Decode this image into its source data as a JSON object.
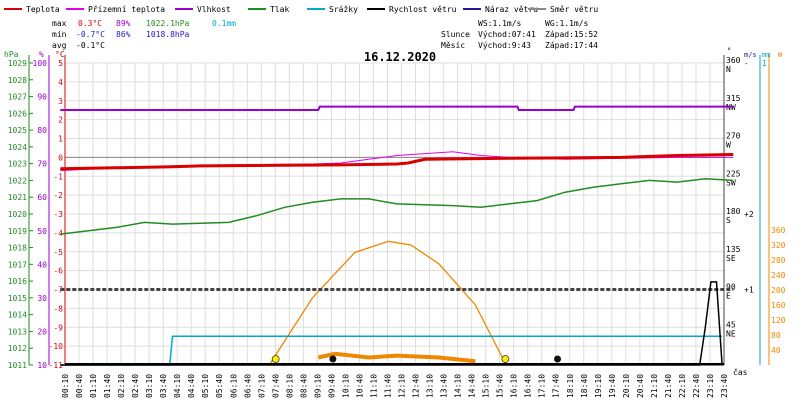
{
  "chart_data": {
    "type": "line",
    "title": "16.12.2020",
    "legend": [
      {
        "name": "Teplota",
        "color": "#d90000"
      },
      {
        "name": "Přízemní teplota",
        "color": "#e600e6"
      },
      {
        "name": "Vlhkost",
        "color": "#9900cc"
      },
      {
        "name": "Tlak",
        "color": "#228b22"
      },
      {
        "name": "Srážky",
        "color": "#00aacc"
      },
      {
        "name": "Rychlost větru",
        "color": "#000000"
      },
      {
        "name": "Náraz větru",
        "color": "#1a1a99"
      },
      {
        "name": "Směr větru",
        "color": "#888888"
      }
    ],
    "stats": {
      "max": {
        "label": "max",
        "temp": "0.3°C",
        "hum": "89%",
        "press": "1022.1hPa",
        "rain": "0.1mm"
      },
      "min": {
        "label": "min",
        "temp": "-0.7°C",
        "hum": "86%",
        "press": "1018.8hPa"
      },
      "avg": {
        "label": "avg",
        "temp": "-0.1°C"
      }
    },
    "astro": {
      "ws": "WS:1.1m/s",
      "wg": "WG:1.1m/s",
      "sun_label": "Slunce",
      "sunrise": "Východ:07:41",
      "sunset": "Západ:15:52",
      "moon_label": "Měsíc",
      "moonrise": "Východ:9:43",
      "moonset": "Západ:17:44"
    },
    "x_axis": {
      "label": "čas",
      "ticks": [
        "00:10",
        "00:40",
        "01:10",
        "01:40",
        "02:10",
        "02:40",
        "03:10",
        "03:40",
        "04:10",
        "04:40",
        "05:10",
        "05:40",
        "06:10",
        "06:40",
        "07:10",
        "07:40",
        "08:10",
        "08:40",
        "09:10",
        "09:40",
        "10:10",
        "10:40",
        "11:10",
        "11:40",
        "12:10",
        "12:40",
        "13:10",
        "13:40",
        "14:10",
        "14:40",
        "15:10",
        "15:40",
        "16:10",
        "16:40",
        "17:10",
        "17:40",
        "18:10",
        "18:40",
        "19:10",
        "19:40",
        "20:10",
        "20:40",
        "21:10",
        "21:40",
        "22:10",
        "22:40",
        "23:10",
        "23:40"
      ]
    },
    "axes": {
      "press": {
        "unit": "hPa",
        "color": "#228b22",
        "ticks": [
          "1029",
          "1028",
          "1027",
          "1026",
          "1025",
          "1024",
          "1023",
          "1022",
          "1021",
          "1020",
          "1019",
          "1018",
          "1017",
          "1016",
          "1015",
          "1014",
          "1013",
          "1012",
          "1011"
        ]
      },
      "hum": {
        "unit": "%",
        "color": "#9900cc",
        "ticks": [
          "100",
          "90",
          "80",
          "70",
          "60",
          "50",
          "40",
          "30",
          "20",
          "10"
        ]
      },
      "temp": {
        "unit": "°C",
        "color": "#d90000",
        "ticks": [
          "5",
          "4",
          "3",
          "2",
          "1",
          "0",
          "-1",
          "-2",
          "-3",
          "-4",
          "-5",
          "-6",
          "-7",
          "-8",
          "-9",
          "-10",
          "-11"
        ]
      },
      "dir": {
        "unit": "°",
        "ticks": [
          "360",
          "315",
          "270",
          "225",
          "180",
          "135",
          "90",
          "45"
        ],
        "names": [
          "N",
          "NW",
          "W",
          "SW",
          "S",
          "SE",
          "E",
          "NE"
        ]
      },
      "wind": {
        "unit": "m/s",
        "ticks": [
          "2",
          "1"
        ]
      },
      "rain": {
        "unit": "mm",
        "ticks": [
          "1"
        ]
      },
      "solar": {
        "unit": "W",
        "color": "#ee8800",
        "ticks": [
          "360",
          "320",
          "280",
          "240",
          "200",
          "160",
          "120",
          "80",
          "40"
        ]
      }
    },
    "series": {
      "temperature": [
        [
          0,
          -0.6
        ],
        [
          2,
          -0.55
        ],
        [
          4,
          -0.5
        ],
        [
          5,
          -0.45
        ],
        [
          8,
          -0.42
        ],
        [
          10,
          -0.4
        ],
        [
          12,
          -0.35
        ],
        [
          12.4,
          -0.3
        ],
        [
          13,
          -0.1
        ],
        [
          16,
          -0.05
        ],
        [
          18,
          -0.03
        ],
        [
          20,
          0.0
        ],
        [
          22,
          0.1
        ],
        [
          24,
          0.15
        ]
      ],
      "ground_temperature": [
        [
          0,
          -0.7
        ],
        [
          2,
          -0.55
        ],
        [
          4,
          -0.45
        ],
        [
          6,
          -0.4
        ],
        [
          9,
          -0.35
        ],
        [
          10,
          -0.3
        ],
        [
          11,
          -0.1
        ],
        [
          12,
          0.1
        ],
        [
          13,
          0.2
        ],
        [
          14,
          0.3
        ],
        [
          15,
          0.1
        ],
        [
          16,
          0.0
        ],
        [
          18,
          -0.1
        ],
        [
          20,
          -0.05
        ],
        [
          22,
          0.0
        ],
        [
          24,
          0.0
        ]
      ],
      "humidity": [
        [
          0,
          86
        ],
        [
          9.2,
          86
        ],
        [
          9.25,
          87
        ],
        [
          16.3,
          87
        ],
        [
          16.35,
          86
        ],
        [
          18.3,
          86
        ],
        [
          18.35,
          87
        ],
        [
          24,
          87
        ]
      ],
      "pressure": [
        [
          0,
          1018.8
        ],
        [
          1,
          1019.0
        ],
        [
          2,
          1019.2
        ],
        [
          3,
          1019.5
        ],
        [
          4,
          1019.4
        ],
        [
          6,
          1019.5
        ],
        [
          7,
          1019.9
        ],
        [
          8,
          1020.4
        ],
        [
          9,
          1020.7
        ],
        [
          10,
          1020.9
        ],
        [
          11,
          1020.9
        ],
        [
          12,
          1020.6
        ],
        [
          14,
          1020.5
        ],
        [
          15,
          1020.4
        ],
        [
          16,
          1020.6
        ],
        [
          17,
          1020.8
        ],
        [
          18,
          1021.3
        ],
        [
          19,
          1021.6
        ],
        [
          20,
          1021.8
        ],
        [
          21,
          1022.0
        ],
        [
          22,
          1021.9
        ],
        [
          23,
          1022.1
        ],
        [
          24,
          1022.0
        ]
      ],
      "rain": [
        [
          0,
          0
        ],
        [
          3.9,
          0
        ],
        [
          4.0,
          0.1
        ],
        [
          23.6,
          0.1
        ]
      ],
      "wind_speed": [
        [
          0,
          0
        ],
        [
          22.8,
          0
        ],
        [
          23.0,
          0.5
        ],
        [
          23.2,
          1.1
        ],
        [
          23.4,
          1.1
        ],
        [
          23.6,
          0
        ]
      ],
      "wind_direction_dashed": [
        [
          0,
          90
        ],
        [
          24,
          90
        ]
      ],
      "solar": [
        [
          7.45,
          0
        ],
        [
          9,
          180
        ],
        [
          10.5,
          300
        ],
        [
          11.7,
          330
        ],
        [
          12.5,
          320
        ],
        [
          13.5,
          270
        ],
        [
          14.8,
          160
        ],
        [
          15.9,
          0
        ]
      ],
      "solar_measured": [
        [
          9.2,
          20
        ],
        [
          9.8,
          30
        ],
        [
          11,
          20
        ],
        [
          12,
          25
        ],
        [
          13.5,
          20
        ],
        [
          14.8,
          10
        ]
      ]
    }
  }
}
